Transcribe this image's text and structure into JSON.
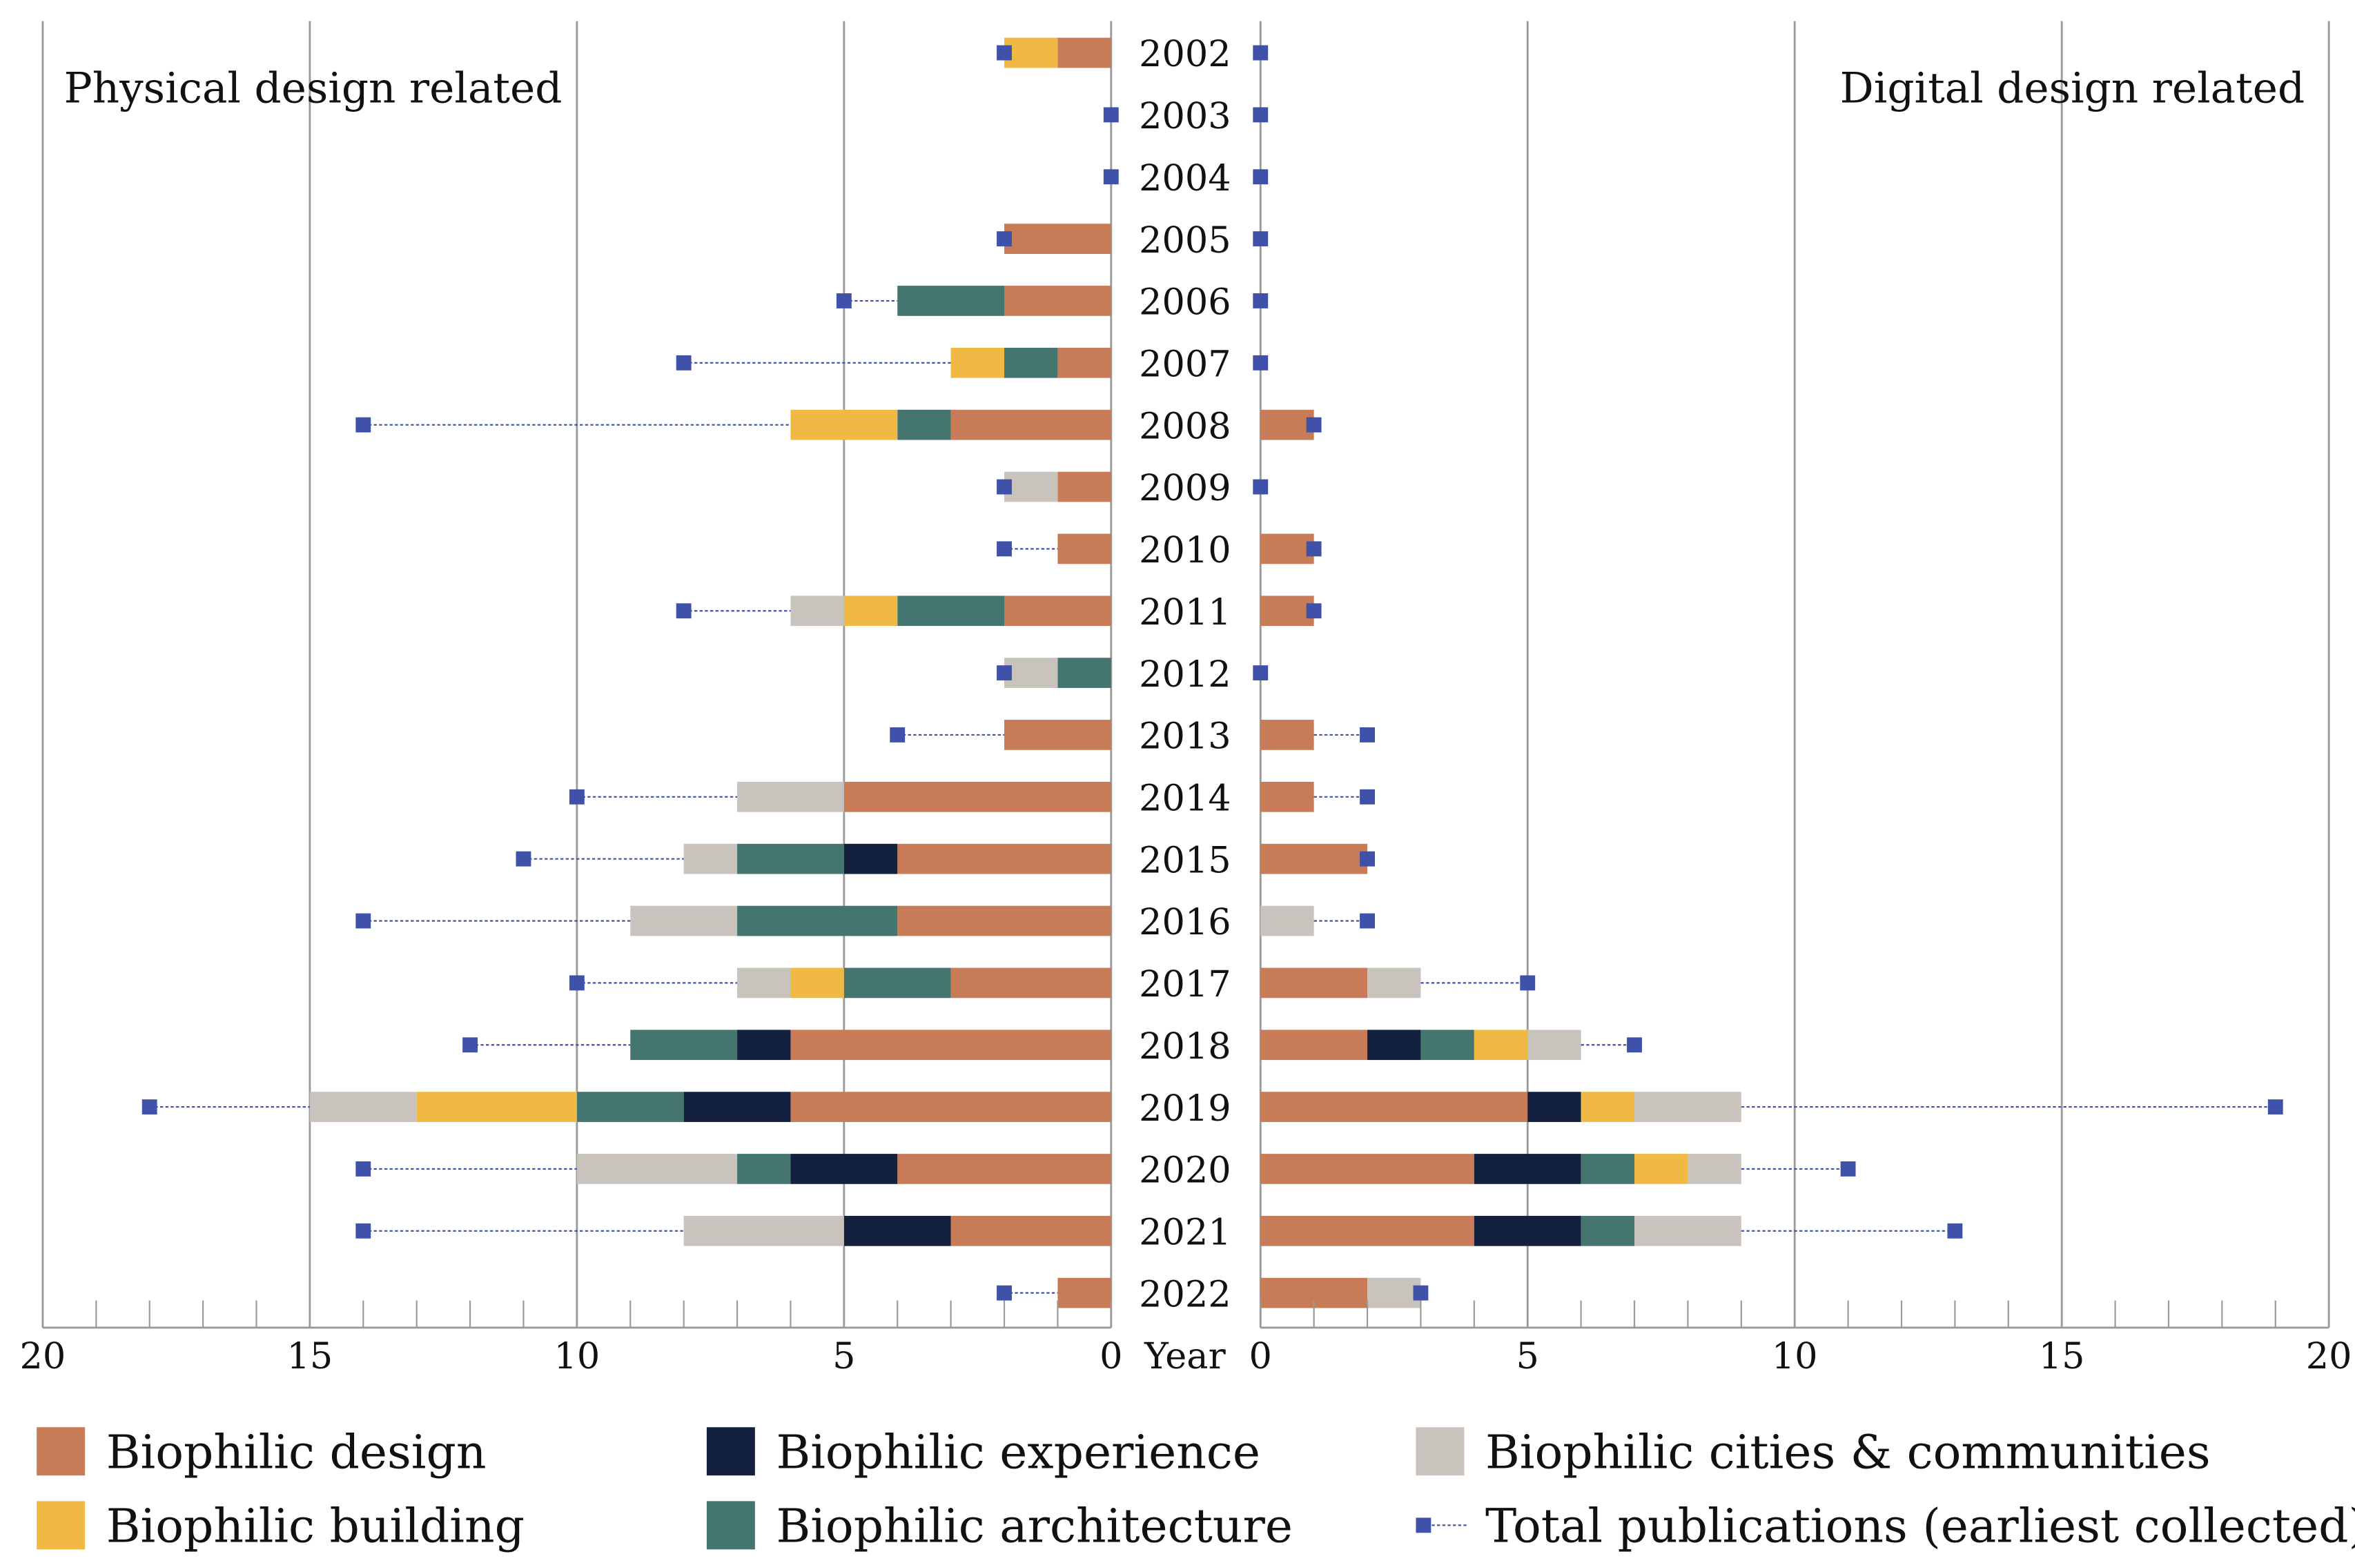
{
  "chart_data": {
    "type": "bar",
    "orientation": "horizontal-diverging-stacked",
    "panels": {
      "left": {
        "title": "Physical design related",
        "xlim": [
          0,
          20
        ],
        "ticks": [
          20,
          15,
          10,
          5,
          0
        ]
      },
      "right": {
        "title": "Digital design related",
        "xlim": [
          0,
          20
        ],
        "ticks": [
          0,
          5,
          10,
          15,
          20
        ]
      }
    },
    "ylabel": "Year",
    "categories": [
      "2002",
      "2003",
      "2004",
      "2005",
      "2006",
      "2007",
      "2008",
      "2009",
      "2010",
      "2011",
      "2012",
      "2013",
      "2014",
      "2015",
      "2016",
      "2017",
      "2018",
      "2019",
      "2020",
      "2021",
      "2022"
    ],
    "series": [
      {
        "name": "Biophilic design",
        "color": "#c77b56",
        "left": [
          1,
          0,
          0,
          2,
          2,
          1,
          3,
          1,
          1,
          2,
          0,
          2,
          5,
          4,
          4,
          3,
          6,
          6,
          4,
          3,
          1
        ],
        "right": [
          0,
          0,
          0,
          0,
          0,
          0,
          1,
          0,
          1,
          1,
          0,
          1,
          1,
          2,
          0,
          2,
          2,
          5,
          4,
          4,
          2
        ]
      },
      {
        "name": "Biophilic experience",
        "color": "#13213f",
        "left": [
          0,
          0,
          0,
          0,
          0,
          0,
          0,
          0,
          0,
          0,
          0,
          0,
          0,
          1,
          0,
          0,
          1,
          2,
          2,
          2,
          0
        ],
        "right": [
          0,
          0,
          0,
          0,
          0,
          0,
          0,
          0,
          0,
          0,
          0,
          0,
          0,
          0,
          0,
          0,
          1,
          1,
          2,
          2,
          0
        ]
      },
      {
        "name": "Biophilic architecture",
        "color": "#45756f",
        "left": [
          0,
          0,
          0,
          0,
          2,
          1,
          1,
          0,
          0,
          2,
          1,
          0,
          0,
          2,
          3,
          2,
          2,
          2,
          1,
          0,
          0
        ],
        "right": [
          0,
          0,
          0,
          0,
          0,
          0,
          0,
          0,
          0,
          0,
          0,
          0,
          0,
          0,
          0,
          0,
          1,
          0,
          1,
          1,
          0
        ]
      },
      {
        "name": "Biophilic building",
        "color": "#efb943",
        "left": [
          1,
          0,
          0,
          0,
          0,
          1,
          2,
          0,
          0,
          1,
          0,
          0,
          0,
          0,
          0,
          1,
          0,
          3,
          0,
          0,
          0
        ],
        "right": [
          0,
          0,
          0,
          0,
          0,
          0,
          0,
          0,
          0,
          0,
          0,
          0,
          0,
          0,
          0,
          0,
          1,
          1,
          1,
          0,
          0
        ]
      },
      {
        "name": "Biophilic cities & communities",
        "color": "#c8c3bc",
        "left": [
          0,
          0,
          0,
          0,
          0,
          0,
          0,
          1,
          0,
          1,
          1,
          0,
          2,
          1,
          2,
          1,
          0,
          2,
          3,
          3,
          0
        ],
        "right": [
          0,
          0,
          0,
          0,
          0,
          0,
          0,
          0,
          0,
          0,
          0,
          0,
          0,
          0,
          1,
          1,
          1,
          2,
          1,
          2,
          1
        ]
      }
    ],
    "totals": {
      "name": "Total publications (earliest collected)",
      "color": "#3f51a8",
      "left": [
        2,
        0,
        0,
        2,
        5,
        8,
        14,
        2,
        2,
        8,
        2,
        4,
        10,
        11,
        14,
        10,
        12,
        18,
        14,
        14,
        2
      ],
      "right": [
        0,
        0,
        0,
        0,
        0,
        0,
        1,
        0,
        1,
        1,
        0,
        2,
        2,
        2,
        2,
        5,
        7,
        19,
        11,
        13,
        3
      ]
    },
    "legend_placement": "bottom",
    "grid": true
  }
}
